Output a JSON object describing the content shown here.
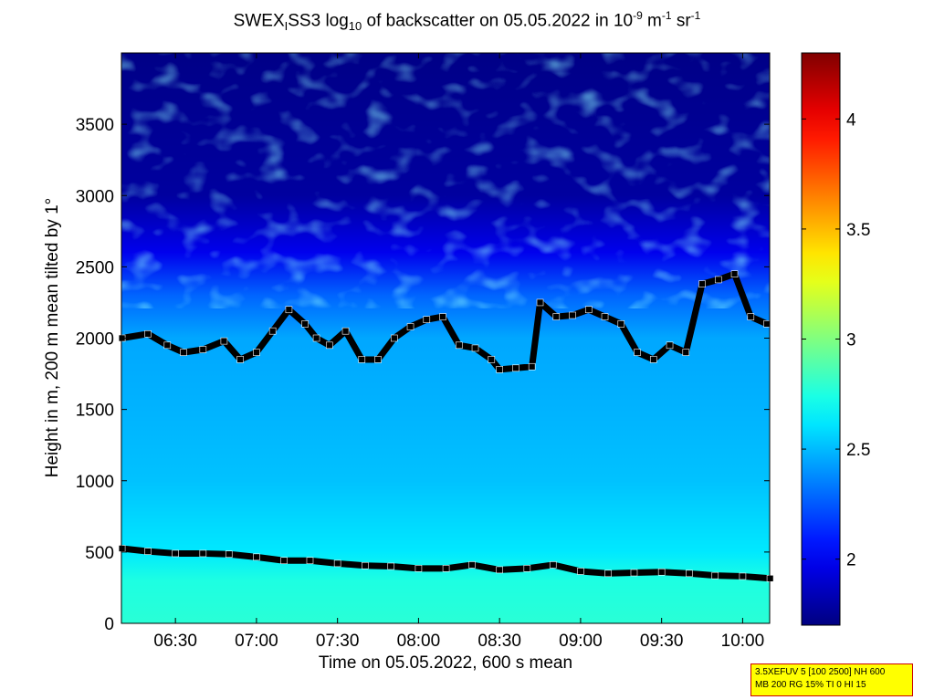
{
  "title": {
    "prefix": "SWEX",
    "sub_i": "I",
    "name": "SS3 log",
    "sub_10": "10",
    "middle": " of backscatter on 05.05.2022 in 10",
    "exp1": "-9",
    "unit_m": " m",
    "exp2": "-1",
    "unit_sr": " sr",
    "exp3": "-1"
  },
  "info_box": [
    "3.5XEFUV 5 [100 2500] NH 600",
    "MB 200 RG 15% TI 0 HI 15"
  ],
  "chart_data": {
    "type": "heatmap",
    "xlabel": "Time on 05.05.2022, 600 s mean",
    "ylabel": "Height in m, 200 m mean tilted by 1°",
    "x_range_hours": [
      6.1667,
      10.1667
    ],
    "xlim": [
      "06:10",
      "10:10"
    ],
    "ylim": [
      0,
      4000
    ],
    "x_ticks": [
      "06:30",
      "07:00",
      "07:30",
      "08:00",
      "08:30",
      "09:00",
      "09:30",
      "10:00"
    ],
    "x_tick_hours": [
      6.5,
      7.0,
      7.5,
      8.0,
      8.5,
      9.0,
      9.5,
      10.0
    ],
    "y_ticks": [
      0,
      500,
      1000,
      1500,
      2000,
      2500,
      3000,
      3500
    ],
    "colorbar": {
      "range": [
        1.7,
        4.3
      ],
      "ticks": [
        2,
        2.5,
        3,
        3.5,
        4
      ],
      "tick_labels": [
        "2",
        "2.5",
        "3",
        "3.5",
        "4"
      ],
      "colormap": "jet"
    },
    "field_profile": [
      {
        "height": 0,
        "value": 2.78
      },
      {
        "height": 300,
        "value": 2.75
      },
      {
        "height": 500,
        "value": 2.62
      },
      {
        "height": 1000,
        "value": 2.52
      },
      {
        "height": 1500,
        "value": 2.48
      },
      {
        "height": 2000,
        "value": 2.45
      },
      {
        "height": 2300,
        "value": 2.28
      },
      {
        "height": 2600,
        "value": 1.98
      },
      {
        "height": 3000,
        "value": 1.78
      },
      {
        "height": 4000,
        "value": 1.72
      }
    ],
    "series": [
      {
        "layer": "lower",
        "marker_color": "#000000",
        "x_hours": [
          6.17,
          6.33,
          6.5,
          6.67,
          6.83,
          7.0,
          7.17,
          7.33,
          7.5,
          7.67,
          7.83,
          8.0,
          8.17,
          8.33,
          8.5,
          8.67,
          8.83,
          9.0,
          9.17,
          9.33,
          9.5,
          9.67,
          9.83,
          10.0,
          10.17
        ],
        "height": [
          525,
          505,
          490,
          490,
          485,
          465,
          440,
          440,
          420,
          405,
          400,
          385,
          385,
          410,
          375,
          385,
          410,
          365,
          350,
          355,
          360,
          350,
          335,
          330,
          315
        ]
      },
      {
        "layer": "upper",
        "marker_color": "#000000",
        "x_hours": [
          6.17,
          6.33,
          6.45,
          6.55,
          6.67,
          6.8,
          6.9,
          7.0,
          7.1,
          7.2,
          7.3,
          7.37,
          7.45,
          7.55,
          7.65,
          7.75,
          7.85,
          7.95,
          8.05,
          8.15,
          8.25,
          8.35,
          8.45,
          8.5,
          8.6,
          8.7,
          8.75,
          8.85,
          8.95,
          9.05,
          9.15,
          9.25,
          9.35,
          9.45,
          9.55,
          9.65,
          9.75,
          9.85,
          9.95,
          10.05,
          10.15
        ],
        "height": [
          2000,
          2030,
          1950,
          1900,
          1920,
          1980,
          1850,
          1900,
          2050,
          2200,
          2100,
          2000,
          1950,
          2050,
          1850,
          1850,
          2000,
          2080,
          2130,
          2150,
          1950,
          1930,
          1850,
          1780,
          1790,
          1800,
          2250,
          2150,
          2160,
          2200,
          2150,
          2100,
          1900,
          1850,
          1950,
          1900,
          2380,
          2410,
          2450,
          2150,
          2100
        ]
      }
    ]
  }
}
